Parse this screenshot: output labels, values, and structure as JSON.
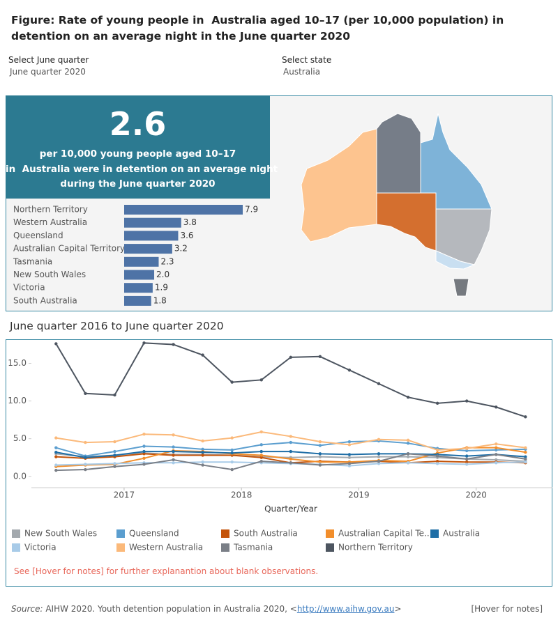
{
  "title": "Figure: Rate of young people in  Australia aged 10–17 (per 10,000 population) in detention on an average night in the June quarter 2020",
  "filters": [
    {
      "label": "Select June quarter",
      "value": "June quarter 2020"
    },
    {
      "label": "Select state",
      "value": "Australia"
    }
  ],
  "headline": {
    "value": 2.6,
    "lines": [
      "per 10,000 young people aged 10–17",
      "in  Australia were in detention on an average night",
      "during the June quarter 2020"
    ]
  },
  "chart_data": [
    {
      "type": "bar",
      "orientation": "horizontal",
      "color": "#4e73a6",
      "categories": [
        "Northern Territory",
        "Western Australia",
        "Queensland",
        "Australian Capital Territory",
        "Tasmania",
        "New South Wales",
        "Victoria",
        "South Australia"
      ],
      "values": [
        7.9,
        3.8,
        3.6,
        3.2,
        2.3,
        2.0,
        1.9,
        1.8
      ],
      "value_labels": [
        "7.9",
        "3.8",
        "3.6",
        "3.2",
        "2.3",
        "2.0",
        "1.9",
        "1.8"
      ]
    },
    {
      "type": "line",
      "title": "June quarter 2016 to June quarter 2020",
      "x_label": "Quarter/Year",
      "legend": "bottom",
      "x": [
        2016.42,
        2016.67,
        2016.92,
        2017.17,
        2017.42,
        2017.67,
        2017.92,
        2018.17,
        2018.42,
        2018.67,
        2018.92,
        2019.17,
        2019.42,
        2019.67,
        2019.92,
        2020.17,
        2020.42
      ],
      "xlim": [
        2016.21,
        2020.65
      ],
      "xticks": [
        2017,
        2018,
        2019,
        2020
      ],
      "ylim": [
        -1.5,
        18.1
      ],
      "yticks": [
        {
          "value": 0,
          "label": "0.0"
        },
        {
          "value": 5,
          "label": "5.0"
        },
        {
          "value": 10,
          "label": "10.0"
        },
        {
          "value": 15,
          "label": "15.0"
        }
      ],
      "series": [
        {
          "name": "New South Wales",
          "color": "#a3a9ae",
          "values": [
            3.0,
            2.6,
            2.8,
            3.1,
            2.9,
            2.9,
            2.8,
            2.6,
            2.5,
            2.6,
            2.5,
            2.6,
            2.6,
            2.5,
            2.3,
            2.2,
            2.0
          ]
        },
        {
          "name": "Queensland",
          "color": "#5b9ecf",
          "values": [
            3.8,
            2.7,
            3.3,
            4.0,
            3.9,
            3.6,
            3.5,
            4.2,
            4.5,
            4.1,
            4.6,
            4.7,
            4.4,
            3.7,
            3.4,
            3.5,
            3.6
          ]
        },
        {
          "name": "South Australia",
          "color": "#c4540a",
          "values": [
            2.6,
            2.4,
            2.6,
            3.0,
            2.8,
            2.8,
            2.8,
            2.5,
            1.8,
            2.0,
            1.9,
            2.0,
            1.8,
            2.0,
            1.9,
            1.9,
            1.8
          ]
        },
        {
          "name": "Australian Capital Te..",
          "color": "#f28e2b",
          "values": [
            1.3,
            1.5,
            1.6,
            2.4,
            3.4,
            3.3,
            3.0,
            2.8,
            2.3,
            1.9,
            1.9,
            2.1,
            2.0,
            3.1,
            3.8,
            3.8,
            3.2
          ]
        },
        {
          "name": "Australia",
          "color": "#1f6ea6",
          "values": [
            3.2,
            2.5,
            2.8,
            3.3,
            3.3,
            3.2,
            3.1,
            3.3,
            3.3,
            3.0,
            2.9,
            3.0,
            3.0,
            2.9,
            2.7,
            2.9,
            2.6
          ]
        },
        {
          "name": "Victoria",
          "color": "#a8cbe8",
          "values": [
            1.5,
            1.6,
            1.7,
            1.8,
            1.8,
            1.9,
            1.9,
            1.8,
            1.7,
            1.6,
            1.4,
            1.7,
            1.8,
            1.7,
            1.6,
            1.8,
            1.9
          ]
        },
        {
          "name": "Western Australia",
          "color": "#fbb97a",
          "values": [
            5.1,
            4.5,
            4.6,
            5.6,
            5.5,
            4.7,
            5.1,
            5.9,
            5.3,
            4.6,
            4.2,
            4.9,
            4.8,
            3.5,
            3.7,
            4.3,
            3.8
          ]
        },
        {
          "name": "Tasmania",
          "color": "#7a7f87",
          "values": [
            0.8,
            0.9,
            1.3,
            1.6,
            2.2,
            1.5,
            0.9,
            2.0,
            1.8,
            1.5,
            1.7,
            2.0,
            3.0,
            2.7,
            2.3,
            2.9,
            2.3
          ]
        },
        {
          "name": "Northern Territory",
          "color": "#4d5560",
          "values": [
            17.6,
            11.0,
            10.8,
            17.7,
            17.5,
            16.1,
            12.5,
            12.8,
            15.8,
            15.9,
            14.1,
            12.3,
            10.5,
            9.7,
            10.0,
            9.2,
            7.9
          ]
        }
      ]
    }
  ],
  "note": "See [Hover for notes] for further explanantion about blank observations.",
  "source": {
    "label": "Source:",
    "text": " AIHW 2020. Youth detention population in Australia 2020, <",
    "link": "http://www.aihw.gov.au",
    "end": ">"
  },
  "notes_link": "[Hover for notes]"
}
